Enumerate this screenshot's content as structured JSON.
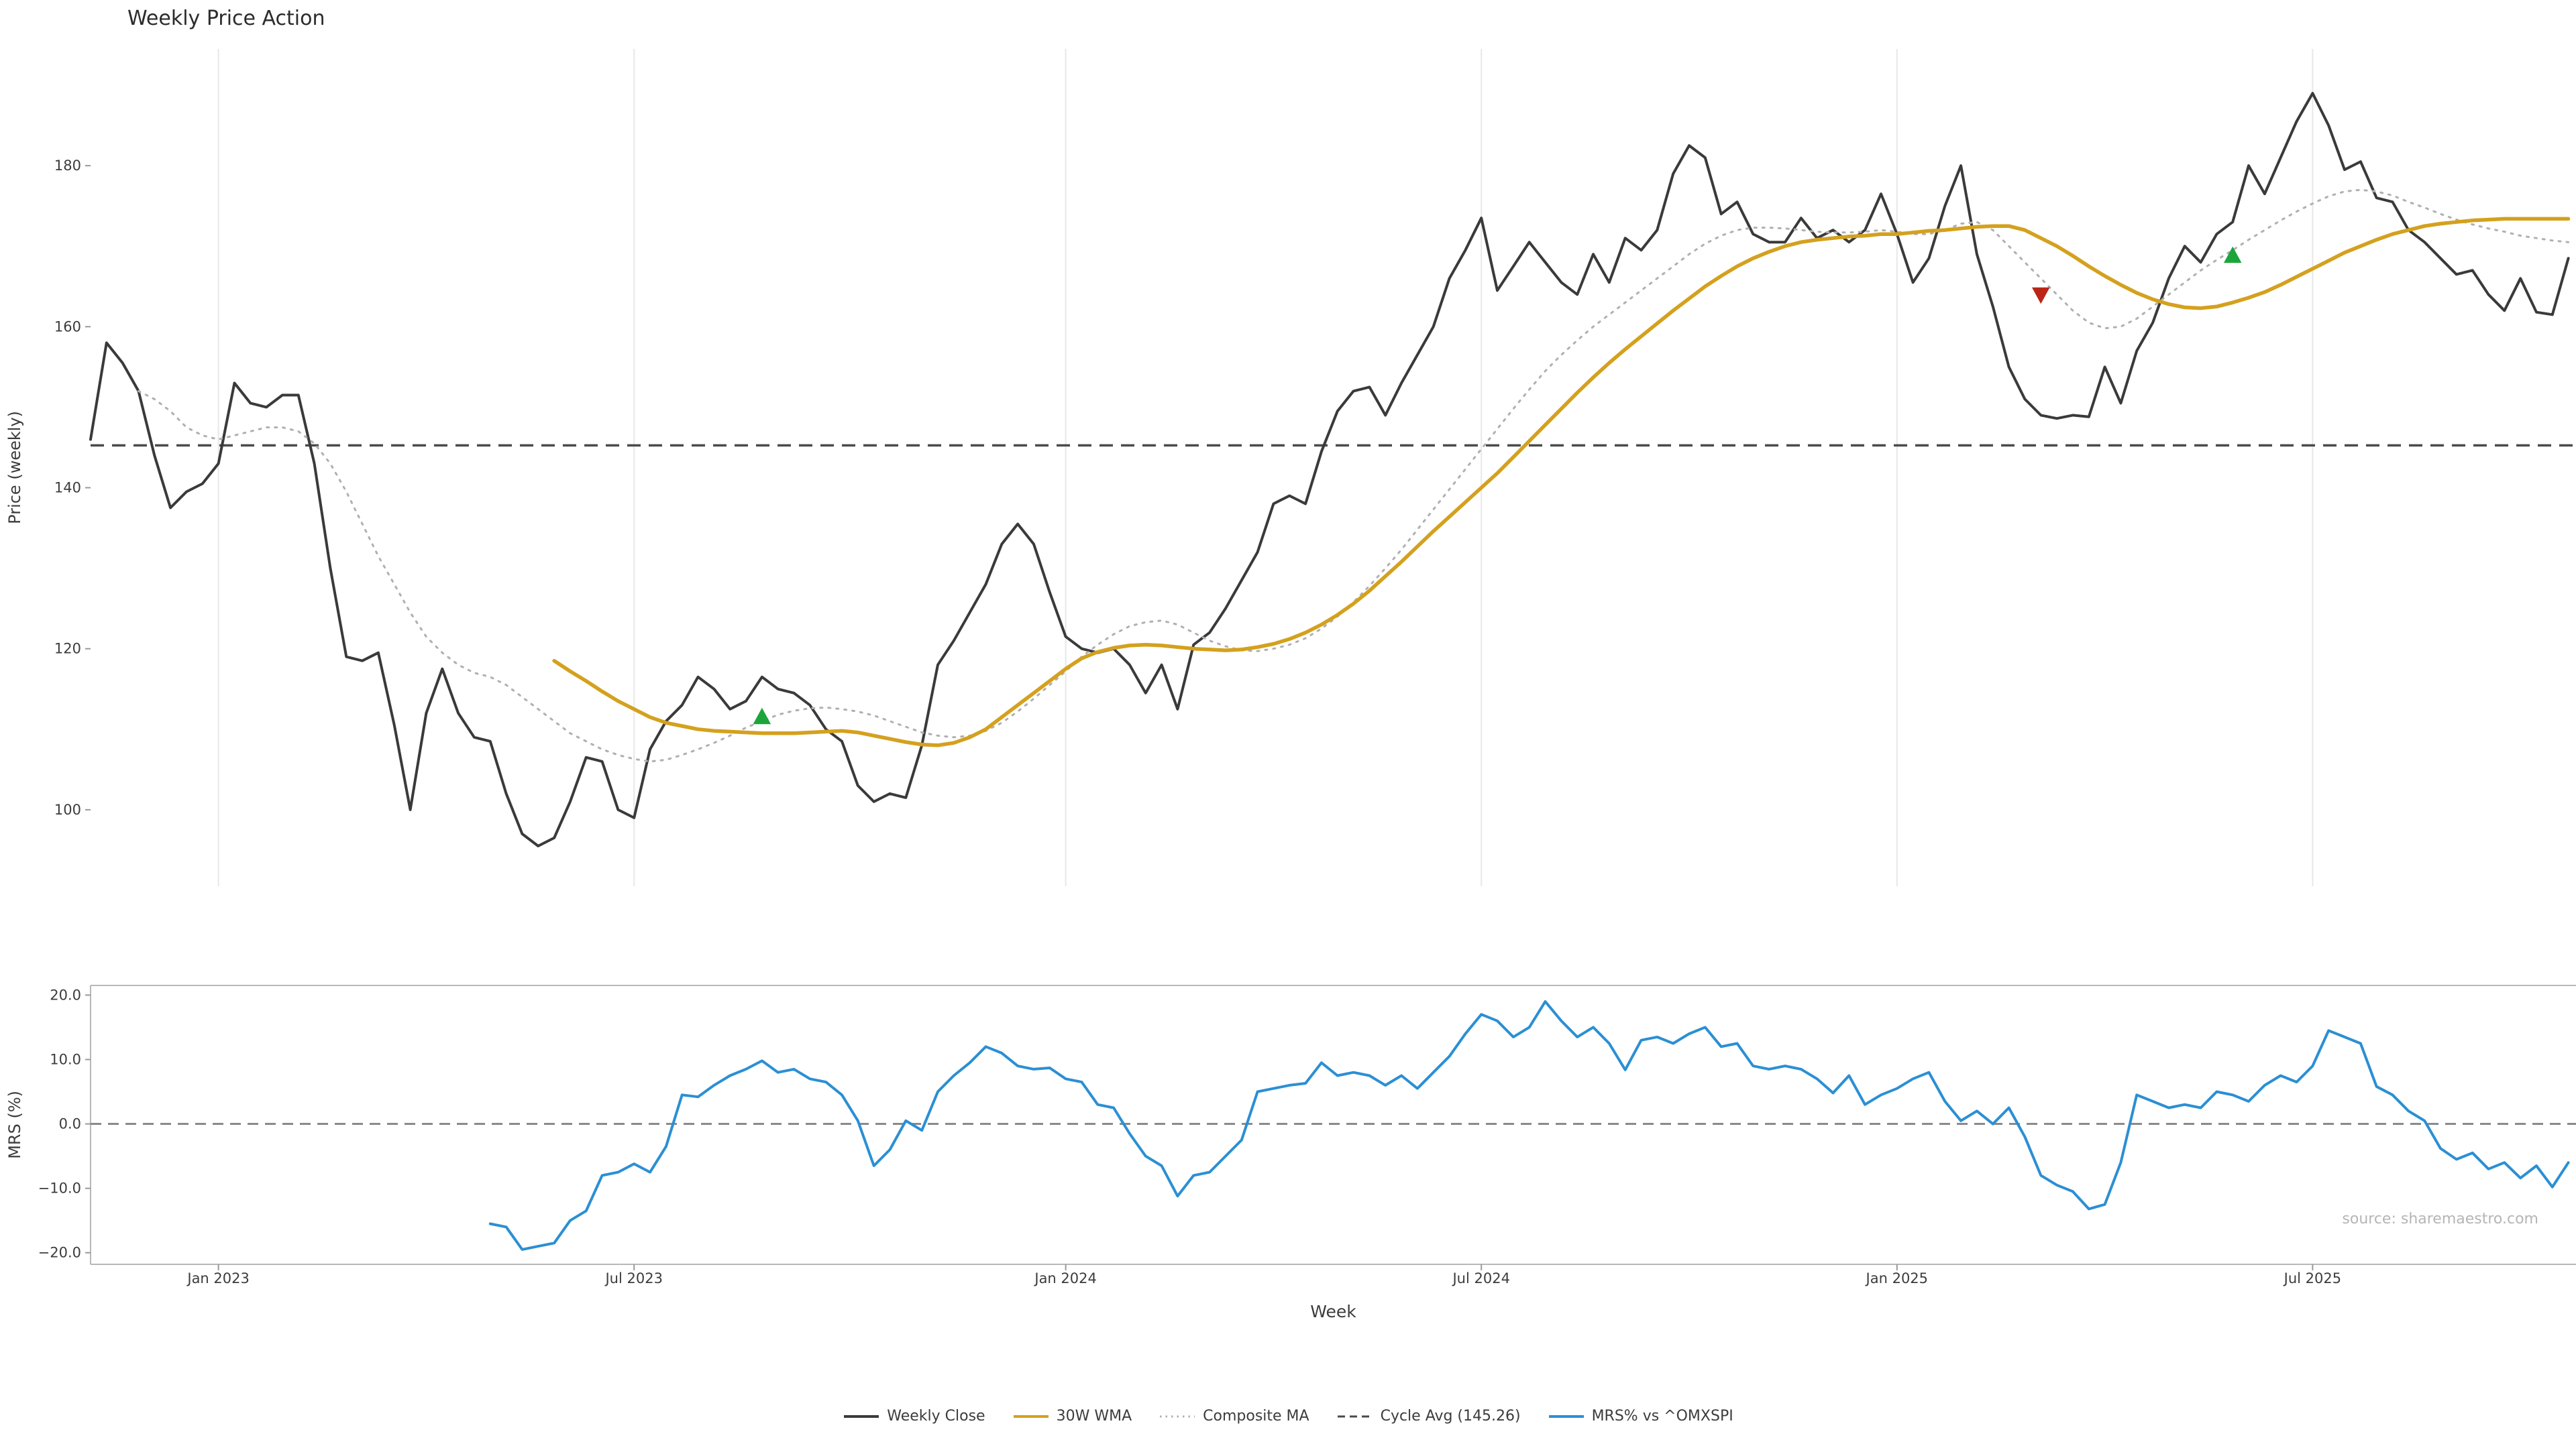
{
  "title": "Weekly Price Action",
  "source": "source: sharemaestro.com",
  "colors": {
    "weekly_close": "#3a3a3a",
    "wma_30w": "#d4a11e",
    "composite_ma": "#b0b0b0",
    "cycle_avg": "#4a4a4a",
    "mrs": "#2b8fd4",
    "buy_marker": "#1da53c",
    "sell_marker": "#bb2518",
    "gridline": "#e8e8e8",
    "background": "#ffffff"
  },
  "legend": [
    {
      "label": "Weekly Close",
      "color": "#3a3a3a",
      "style": "solid"
    },
    {
      "label": "30W WMA",
      "color": "#d4a11e",
      "style": "solid"
    },
    {
      "label": "Composite MA",
      "color": "#b0b0b0",
      "style": "dotted"
    },
    {
      "label": "Cycle Avg (145.26)",
      "color": "#4a4a4a",
      "style": "dashed"
    },
    {
      "label": "MRS% vs ^OMXSPI",
      "color": "#2b8fd4",
      "style": "solid"
    }
  ],
  "chart_data": [
    {
      "type": "line",
      "title": "Weekly Price Action",
      "xlabel": "Week",
      "ylabel": "Price (weekly)",
      "ylim": [
        90.5,
        194.5
      ],
      "yticks": [
        100,
        120,
        140,
        160,
        180
      ],
      "ytick_labels": [
        "100",
        "120",
        "140",
        "160",
        "180"
      ],
      "x_unit": "week_index",
      "x_range": [
        0,
        155
      ],
      "xticks": [
        {
          "week": 8,
          "label": "Jan 2023"
        },
        {
          "week": 34,
          "label": "Jul 2023"
        },
        {
          "week": 61,
          "label": "Jan 2024"
        },
        {
          "week": 87,
          "label": "Jul 2024"
        },
        {
          "week": 113,
          "label": "Jan 2025"
        },
        {
          "week": 139,
          "label": "Jul 2025"
        }
      ],
      "grid": "vertical",
      "cycle_avg": 145.26,
      "series": [
        {
          "name": "Weekly Close",
          "color": "#3a3a3a",
          "style": "solid",
          "width": 4,
          "start_week": 0,
          "values": [
            146,
            158,
            155.5,
            152,
            144,
            137.5,
            139.5,
            140.5,
            143,
            153,
            150.5,
            150,
            151.5,
            151.5,
            143,
            130,
            119,
            118.5,
            119.5,
            110.5,
            100,
            112,
            117.5,
            112,
            109,
            108.5,
            102,
            97,
            95.5,
            96.5,
            101,
            106.5,
            106,
            100,
            99,
            107.5,
            111,
            113,
            116.5,
            115,
            112.5,
            113.5,
            116.5,
            115,
            114.5,
            113,
            110,
            108.5,
            103,
            101,
            102,
            101.5,
            108,
            118,
            121,
            124.5,
            128,
            133,
            135.5,
            133,
            127,
            121.5,
            120,
            119.5,
            120,
            118,
            114.5,
            118,
            112.5,
            120.5,
            122,
            125,
            128.5,
            132,
            138,
            139,
            138,
            144.5,
            149.5,
            152,
            152.5,
            149,
            153,
            156.5,
            160,
            166,
            169.5,
            173.5,
            164.5,
            167.5,
            170.5,
            168,
            165.5,
            164,
            169,
            165.5,
            171,
            169.5,
            172,
            179,
            182.5,
            181,
            174,
            175.5,
            171.5,
            170.5,
            170.5,
            173.5,
            171,
            172,
            170.5,
            172,
            176.5,
            171.5,
            165.5,
            168.5,
            175,
            180,
            169,
            162.5,
            155,
            151,
            149,
            148.6,
            149,
            148.8,
            155,
            150.5,
            157,
            160.5,
            166,
            170,
            168,
            171.5,
            173,
            180,
            176.5,
            181,
            185.5,
            189,
            185,
            179.5,
            180.5,
            176,
            175.5,
            172,
            170.5,
            168.5,
            166.5,
            167,
            164,
            162,
            166,
            161.8,
            161.5,
            168.5
          ]
        },
        {
          "name": "30W WMA",
          "color": "#d4a11e",
          "style": "solid",
          "width": 5.5,
          "start_week": 29,
          "values": [
            118.5,
            117.2,
            116,
            114.7,
            113.5,
            112.5,
            111.5,
            110.8,
            110.4,
            110,
            109.8,
            109.7,
            109.6,
            109.5,
            109.5,
            109.5,
            109.6,
            109.7,
            109.8,
            109.6,
            109.2,
            108.8,
            108.4,
            108.1,
            108,
            108.3,
            109,
            110,
            111.5,
            113,
            114.5,
            116,
            117.5,
            118.8,
            119.6,
            120.1,
            120.4,
            120.5,
            120.4,
            120.2,
            120,
            119.9,
            119.8,
            119.9,
            120.2,
            120.6,
            121.2,
            122,
            123,
            124.2,
            125.6,
            127.2,
            129,
            130.8,
            132.7,
            134.6,
            136.4,
            138.2,
            140,
            141.8,
            143.8,
            145.8,
            147.8,
            149.8,
            151.8,
            153.7,
            155.5,
            157.2,
            158.8,
            160.4,
            162,
            163.5,
            165,
            166.3,
            167.5,
            168.5,
            169.3,
            170,
            170.5,
            170.8,
            171,
            171.2,
            171.3,
            171.5,
            171.5,
            171.7,
            171.9,
            172,
            172.2,
            172.4,
            172.5,
            172.5,
            172,
            171,
            170,
            168.8,
            167.5,
            166.3,
            165.2,
            164.2,
            163.4,
            162.8,
            162.4,
            162.3,
            162.5,
            163,
            163.6,
            164.3,
            165.2,
            166.2,
            167.2,
            168.2,
            169.2,
            170,
            170.8,
            171.5,
            172,
            172.5,
            172.8,
            173,
            173.2,
            173.3,
            173.4,
            173.4,
            173.4,
            173.4,
            173.4
          ]
        },
        {
          "name": "Composite MA",
          "color": "#b0b0b0",
          "style": "dotted",
          "width": 3,
          "start_week": 3,
          "values": [
            152,
            151,
            149.5,
            147.5,
            146.5,
            146,
            146.5,
            147,
            147.5,
            147.5,
            147,
            145.5,
            143,
            139.5,
            135.5,
            131.5,
            128,
            124.5,
            121.5,
            119.5,
            118,
            117,
            116.5,
            115.5,
            114,
            112.5,
            111,
            109.5,
            108.5,
            107.5,
            106.8,
            106.3,
            106,
            106.2,
            106.8,
            107.5,
            108.3,
            109.2,
            110.2,
            111,
            111.8,
            112.3,
            112.6,
            112.7,
            112.5,
            112.2,
            111.7,
            111,
            110.3,
            109.6,
            109.2,
            109,
            109.2,
            109.8,
            110.8,
            112.2,
            113.8,
            115.5,
            117.2,
            119,
            120.5,
            121.8,
            122.8,
            123.3,
            123.5,
            123,
            122,
            121,
            120.3,
            119.8,
            119.7,
            120,
            120.5,
            121.3,
            122.5,
            124,
            125.8,
            127.8,
            130,
            132.3,
            134.8,
            137.3,
            139.8,
            142.3,
            144.8,
            147.3,
            149.8,
            152.2,
            154.5,
            156.5,
            158.3,
            160,
            161.5,
            163,
            164.5,
            166,
            167.5,
            169,
            170.3,
            171.3,
            172,
            172.3,
            172.3,
            172.2,
            172,
            171.8,
            171.7,
            171.7,
            171.8,
            172,
            171.8,
            171.5,
            171.5,
            172,
            172.8,
            173,
            172,
            170,
            168,
            166,
            164,
            162,
            160.5,
            159.8,
            160,
            161,
            162.5,
            164,
            165.5,
            167,
            168.3,
            169.5,
            170.8,
            172,
            173.2,
            174.3,
            175.3,
            176.2,
            176.8,
            177,
            176.8,
            176.3,
            175.5,
            174.8,
            174,
            173.3,
            172.7,
            172.2,
            171.8,
            171.3,
            171,
            170.7,
            170.5
          ]
        }
      ],
      "markers": [
        {
          "type": "buy",
          "shape": "triangle-up",
          "week": 42,
          "value": 111.5,
          "color": "#1da53c"
        },
        {
          "type": "sell",
          "shape": "triangle-down",
          "week": 122,
          "value": 164,
          "color": "#bb2518"
        },
        {
          "type": "buy",
          "shape": "triangle-up",
          "week": 134,
          "value": 168.8,
          "color": "#1da53c"
        }
      ]
    },
    {
      "type": "line",
      "xlabel": "Week",
      "ylabel": "MRS (%)",
      "ylim": [
        -21.8,
        21.5
      ],
      "yticks": [
        -20,
        -10,
        0,
        10,
        20
      ],
      "ytick_labels": [
        "−20.0",
        "−10.0",
        "0.0",
        "10.0",
        "20.0"
      ],
      "zero_line": 0,
      "series": [
        {
          "name": "MRS% vs ^OMXSPI",
          "color": "#2b8fd4",
          "style": "solid",
          "width": 4,
          "start_week": 25,
          "values": [
            -15.5,
            -16,
            -19.5,
            -19,
            -18.5,
            -15,
            -13.5,
            -8,
            -7.5,
            -6.2,
            -7.5,
            -3.5,
            4.5,
            4.2,
            6,
            7.5,
            8.5,
            9.8,
            8,
            8.5,
            7,
            6.5,
            4.5,
            0.5,
            -6.5,
            -4,
            0.5,
            -1,
            5,
            7.5,
            9.5,
            12,
            11,
            9,
            8.5,
            8.7,
            7,
            6.5,
            3,
            2.5,
            -1.5,
            -5,
            -6.5,
            -11.2,
            -8,
            -7.5,
            -5,
            -2.5,
            5,
            5.5,
            6,
            6.3,
            9.5,
            7.5,
            8,
            7.5,
            6,
            7.5,
            5.5,
            8,
            10.5,
            14,
            17,
            16,
            13.5,
            15,
            19,
            16,
            13.5,
            15,
            12.5,
            8.4,
            13,
            13.5,
            12.5,
            14,
            15,
            12,
            12.5,
            9,
            8.5,
            9,
            8.5,
            7,
            4.8,
            7.5,
            3,
            4.5,
            5.5,
            7,
            8,
            3.5,
            0.5,
            2,
            0,
            2.5,
            -2,
            -8,
            -9.5,
            -10.5,
            -13.2,
            -12.5,
            -6,
            4.5,
            3.5,
            2.5,
            3,
            2.5,
            5,
            4.5,
            3.5,
            6,
            7.5,
            6.5,
            9,
            14.5,
            13.5,
            12.5,
            5.8,
            4.5,
            2,
            0.5,
            -3.8,
            -5.5,
            -4.5,
            -7,
            -6,
            -8.4,
            -6.5,
            -9.8,
            -6
          ]
        }
      ]
    }
  ]
}
